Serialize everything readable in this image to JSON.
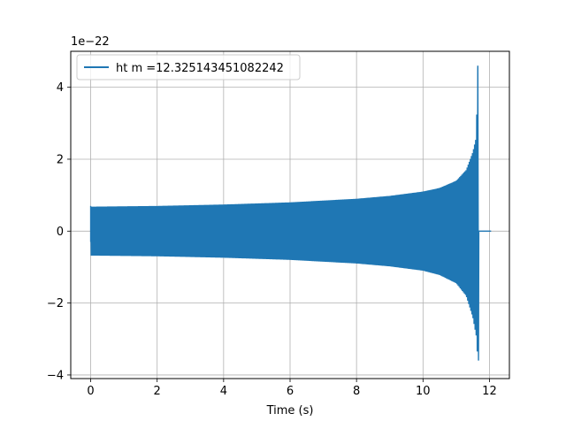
{
  "chart_data": {
    "type": "line",
    "title": "",
    "xlabel": "Time (s)",
    "ylabel": "",
    "y_scale_label": "1e−22",
    "xlim": [
      -0.6,
      12.6
    ],
    "ylim": [
      -4.1,
      5.0
    ],
    "x_ticks": [
      0,
      2,
      4,
      6,
      8,
      10,
      12
    ],
    "x_tick_labels": [
      "0",
      "2",
      "4",
      "6",
      "8",
      "10",
      "12"
    ],
    "y_ticks": [
      -4,
      -2,
      0,
      2,
      4
    ],
    "y_tick_labels": [
      "−4",
      "−2",
      "0",
      "2",
      "4"
    ],
    "grid": true,
    "legend_position": "top-left",
    "series": [
      {
        "name": "ht m =12.325143451082242",
        "color": "#1f77b4",
        "description_points": {
          "t_start": 0.0,
          "t_merger": 11.65,
          "t_end": 12.05,
          "upper_envelope": [
            [
              0.0,
              0.68
            ],
            [
              2.0,
              0.7
            ],
            [
              4.0,
              0.74
            ],
            [
              6.0,
              0.8
            ],
            [
              8.0,
              0.9
            ],
            [
              9.0,
              0.98
            ],
            [
              10.0,
              1.1
            ],
            [
              10.5,
              1.2
            ],
            [
              11.0,
              1.4
            ],
            [
              11.3,
              1.7
            ],
            [
              11.5,
              2.2
            ],
            [
              11.6,
              2.6
            ],
            [
              11.65,
              4.6
            ]
          ],
          "lower_envelope": [
            [
              0.0,
              -0.68
            ],
            [
              2.0,
              -0.7
            ],
            [
              4.0,
              -0.74
            ],
            [
              6.0,
              -0.8
            ],
            [
              8.0,
              -0.9
            ],
            [
              9.0,
              -0.98
            ],
            [
              10.0,
              -1.1
            ],
            [
              10.5,
              -1.22
            ],
            [
              11.0,
              -1.45
            ],
            [
              11.3,
              -1.8
            ],
            [
              11.5,
              -2.4
            ],
            [
              11.6,
              -2.9
            ],
            [
              11.65,
              -3.6
            ]
          ]
        }
      }
    ]
  }
}
